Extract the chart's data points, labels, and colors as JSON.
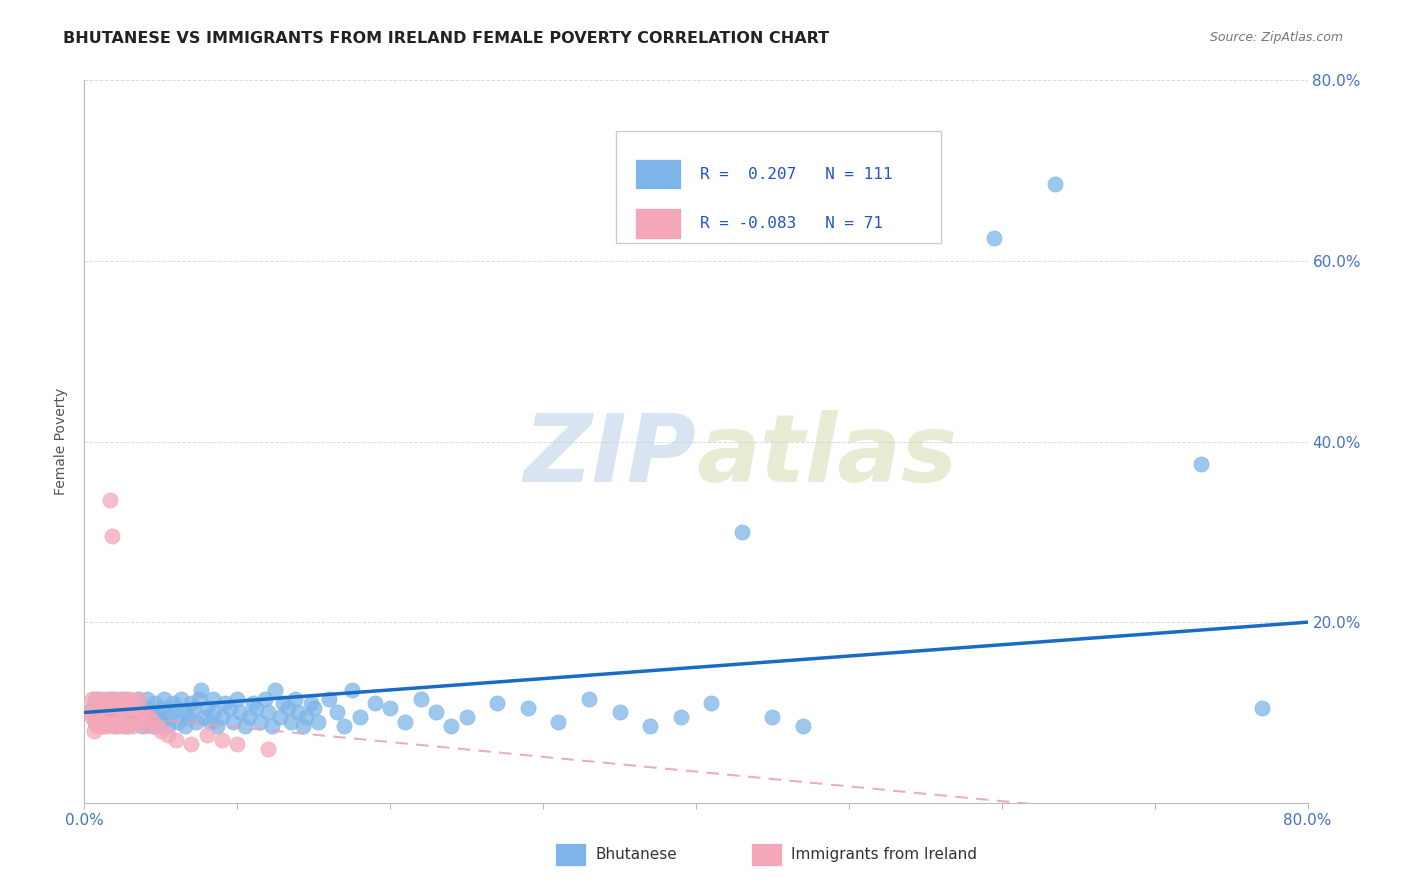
{
  "title": "BHUTANESE VS IMMIGRANTS FROM IRELAND FEMALE POVERTY CORRELATION CHART",
  "source": "Source: ZipAtlas.com",
  "ylabel": "Female Poverty",
  "xlim": [
    0.0,
    0.8
  ],
  "ylim": [
    0.0,
    0.8
  ],
  "xtick_positions": [
    0.0,
    0.1,
    0.2,
    0.3,
    0.4,
    0.5,
    0.6,
    0.7,
    0.8
  ],
  "xticklabels": [
    "0.0%",
    "",
    "",
    "",
    "",
    "",
    "",
    "",
    "80.0%"
  ],
  "ytick_positions": [
    0.0,
    0.2,
    0.4,
    0.6,
    0.8
  ],
  "ytick_labels": [
    "",
    "20.0%",
    "40.0%",
    "60.0%",
    "80.0%"
  ],
  "grid_color": "#cccccc",
  "background_color": "#ffffff",
  "bhutanese_color": "#7EB5E8",
  "ireland_color": "#F4A7B9",
  "trend_blue": "#1A6BC4",
  "trend_pink": "#E8A0B0",
  "R_bhutanese": 0.207,
  "N_bhutanese": 111,
  "R_ireland": -0.083,
  "N_ireland": 71,
  "bhutanese_points": [
    [
      0.005,
      0.105
    ],
    [
      0.007,
      0.09
    ],
    [
      0.008,
      0.115
    ],
    [
      0.009,
      0.095
    ],
    [
      0.01,
      0.1
    ],
    [
      0.012,
      0.085
    ],
    [
      0.013,
      0.11
    ],
    [
      0.015,
      0.095
    ],
    [
      0.015,
      0.105
    ],
    [
      0.017,
      0.09
    ],
    [
      0.018,
      0.115
    ],
    [
      0.019,
      0.1
    ],
    [
      0.02,
      0.085
    ],
    [
      0.02,
      0.11
    ],
    [
      0.022,
      0.095
    ],
    [
      0.023,
      0.105
    ],
    [
      0.025,
      0.09
    ],
    [
      0.025,
      0.115
    ],
    [
      0.027,
      0.1
    ],
    [
      0.028,
      0.085
    ],
    [
      0.03,
      0.095
    ],
    [
      0.03,
      0.11
    ],
    [
      0.032,
      0.105
    ],
    [
      0.033,
      0.09
    ],
    [
      0.035,
      0.115
    ],
    [
      0.036,
      0.1
    ],
    [
      0.038,
      0.085
    ],
    [
      0.038,
      0.095
    ],
    [
      0.04,
      0.105
    ],
    [
      0.041,
      0.115
    ],
    [
      0.042,
      0.09
    ],
    [
      0.044,
      0.1
    ],
    [
      0.045,
      0.085
    ],
    [
      0.046,
      0.11
    ],
    [
      0.048,
      0.095
    ],
    [
      0.05,
      0.105
    ],
    [
      0.05,
      0.09
    ],
    [
      0.052,
      0.115
    ],
    [
      0.053,
      0.1
    ],
    [
      0.055,
      0.085
    ],
    [
      0.056,
      0.095
    ],
    [
      0.058,
      0.11
    ],
    [
      0.06,
      0.105
    ],
    [
      0.061,
      0.09
    ],
    [
      0.063,
      0.115
    ],
    [
      0.065,
      0.1
    ],
    [
      0.066,
      0.085
    ],
    [
      0.068,
      0.095
    ],
    [
      0.07,
      0.11
    ],
    [
      0.071,
      0.105
    ],
    [
      0.073,
      0.09
    ],
    [
      0.075,
      0.115
    ],
    [
      0.076,
      0.125
    ],
    [
      0.078,
      0.095
    ],
    [
      0.08,
      0.105
    ],
    [
      0.082,
      0.09
    ],
    [
      0.084,
      0.115
    ],
    [
      0.085,
      0.1
    ],
    [
      0.087,
      0.085
    ],
    [
      0.09,
      0.095
    ],
    [
      0.092,
      0.11
    ],
    [
      0.095,
      0.105
    ],
    [
      0.097,
      0.09
    ],
    [
      0.1,
      0.115
    ],
    [
      0.102,
      0.1
    ],
    [
      0.105,
      0.085
    ],
    [
      0.108,
      0.095
    ],
    [
      0.11,
      0.11
    ],
    [
      0.112,
      0.105
    ],
    [
      0.115,
      0.09
    ],
    [
      0.118,
      0.115
    ],
    [
      0.12,
      0.1
    ],
    [
      0.123,
      0.085
    ],
    [
      0.125,
      0.125
    ],
    [
      0.128,
      0.095
    ],
    [
      0.13,
      0.11
    ],
    [
      0.133,
      0.105
    ],
    [
      0.135,
      0.09
    ],
    [
      0.138,
      0.115
    ],
    [
      0.14,
      0.1
    ],
    [
      0.143,
      0.085
    ],
    [
      0.145,
      0.095
    ],
    [
      0.148,
      0.11
    ],
    [
      0.15,
      0.105
    ],
    [
      0.153,
      0.09
    ],
    [
      0.16,
      0.115
    ],
    [
      0.165,
      0.1
    ],
    [
      0.17,
      0.085
    ],
    [
      0.175,
      0.125
    ],
    [
      0.18,
      0.095
    ],
    [
      0.19,
      0.11
    ],
    [
      0.2,
      0.105
    ],
    [
      0.21,
      0.09
    ],
    [
      0.22,
      0.115
    ],
    [
      0.23,
      0.1
    ],
    [
      0.24,
      0.085
    ],
    [
      0.25,
      0.095
    ],
    [
      0.27,
      0.11
    ],
    [
      0.29,
      0.105
    ],
    [
      0.31,
      0.09
    ],
    [
      0.33,
      0.115
    ],
    [
      0.35,
      0.1
    ],
    [
      0.37,
      0.085
    ],
    [
      0.39,
      0.095
    ],
    [
      0.41,
      0.11
    ],
    [
      0.43,
      0.3
    ],
    [
      0.45,
      0.095
    ],
    [
      0.47,
      0.085
    ],
    [
      0.595,
      0.625
    ],
    [
      0.635,
      0.685
    ],
    [
      0.73,
      0.375
    ],
    [
      0.77,
      0.105
    ]
  ],
  "ireland_points": [
    [
      0.004,
      0.1
    ],
    [
      0.005,
      0.115
    ],
    [
      0.005,
      0.095
    ],
    [
      0.006,
      0.08
    ],
    [
      0.006,
      0.105
    ],
    [
      0.007,
      0.09
    ],
    [
      0.007,
      0.115
    ],
    [
      0.008,
      0.1
    ],
    [
      0.008,
      0.085
    ],
    [
      0.009,
      0.105
    ],
    [
      0.009,
      0.095
    ],
    [
      0.01,
      0.11
    ],
    [
      0.01,
      0.09
    ],
    [
      0.011,
      0.115
    ],
    [
      0.011,
      0.1
    ],
    [
      0.012,
      0.085
    ],
    [
      0.012,
      0.095
    ],
    [
      0.013,
      0.105
    ],
    [
      0.013,
      0.09
    ],
    [
      0.014,
      0.115
    ],
    [
      0.014,
      0.1
    ],
    [
      0.015,
      0.085
    ],
    [
      0.015,
      0.095
    ],
    [
      0.016,
      0.105
    ],
    [
      0.016,
      0.09
    ],
    [
      0.017,
      0.115
    ],
    [
      0.017,
      0.335
    ],
    [
      0.018,
      0.295
    ],
    [
      0.018,
      0.1
    ],
    [
      0.019,
      0.085
    ],
    [
      0.019,
      0.095
    ],
    [
      0.02,
      0.105
    ],
    [
      0.02,
      0.09
    ],
    [
      0.021,
      0.115
    ],
    [
      0.021,
      0.1
    ],
    [
      0.022,
      0.085
    ],
    [
      0.022,
      0.095
    ],
    [
      0.023,
      0.105
    ],
    [
      0.023,
      0.09
    ],
    [
      0.024,
      0.115
    ],
    [
      0.024,
      0.1
    ],
    [
      0.025,
      0.085
    ],
    [
      0.025,
      0.095
    ],
    [
      0.026,
      0.105
    ],
    [
      0.026,
      0.09
    ],
    [
      0.027,
      0.115
    ],
    [
      0.027,
      0.1
    ],
    [
      0.028,
      0.085
    ],
    [
      0.028,
      0.095
    ],
    [
      0.029,
      0.105
    ],
    [
      0.03,
      0.09
    ],
    [
      0.03,
      0.115
    ],
    [
      0.031,
      0.1
    ],
    [
      0.032,
      0.085
    ],
    [
      0.033,
      0.095
    ],
    [
      0.034,
      0.105
    ],
    [
      0.035,
      0.09
    ],
    [
      0.036,
      0.115
    ],
    [
      0.038,
      0.1
    ],
    [
      0.04,
      0.085
    ],
    [
      0.042,
      0.095
    ],
    [
      0.045,
      0.09
    ],
    [
      0.048,
      0.085
    ],
    [
      0.05,
      0.08
    ],
    [
      0.055,
      0.075
    ],
    [
      0.06,
      0.07
    ],
    [
      0.07,
      0.065
    ],
    [
      0.08,
      0.075
    ],
    [
      0.09,
      0.07
    ],
    [
      0.1,
      0.065
    ],
    [
      0.12,
      0.06
    ]
  ]
}
